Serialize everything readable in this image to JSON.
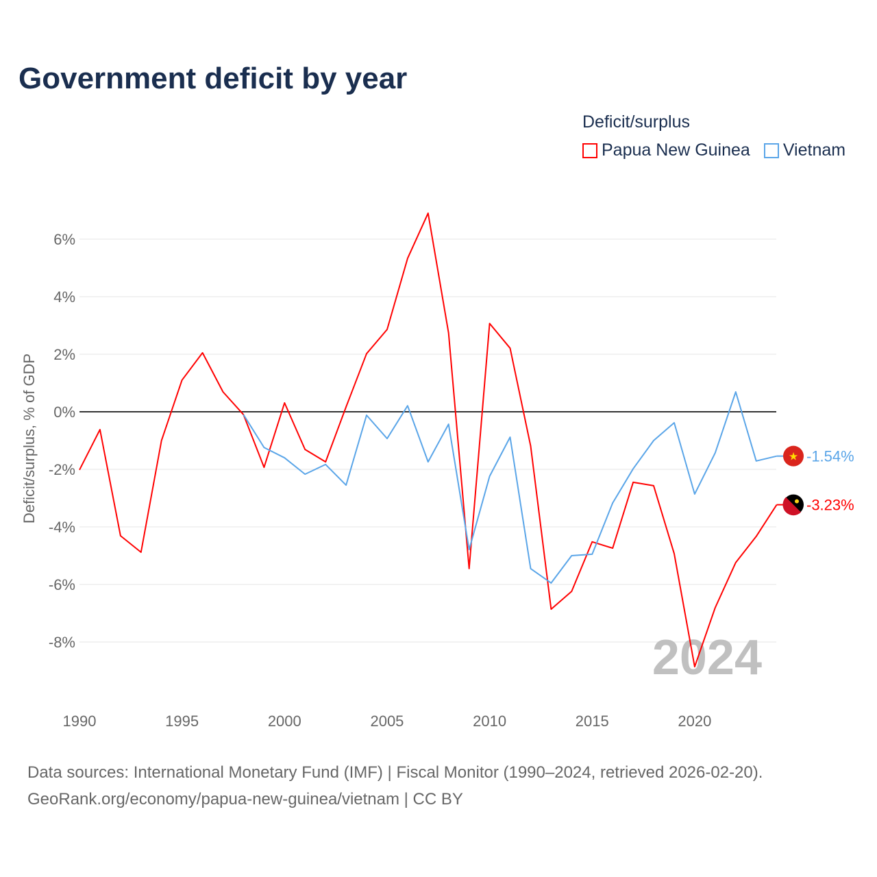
{
  "chart_data": {
    "type": "line",
    "title": "Government deficit by year",
    "ylabel": "Deficit/surplus, % of GDP",
    "xlabel": "",
    "legend_title": "Deficit/surplus",
    "legend_position": "top-right",
    "ylim": [
      -10,
      7.5
    ],
    "xlim": [
      1990,
      2024
    ],
    "y_ticks": [
      6,
      4,
      2,
      0,
      -2,
      -4,
      -6,
      -8
    ],
    "y_tick_labels": [
      "6%",
      "4%",
      "2%",
      "0%",
      "-2%",
      "-4%",
      "-6%",
      "-8%"
    ],
    "x_ticks": [
      1990,
      1995,
      2000,
      2005,
      2010,
      2015,
      2020
    ],
    "x_tick_labels": [
      "1990",
      "1995",
      "2000",
      "2005",
      "2010",
      "2015",
      "2020"
    ],
    "grid": true,
    "watermark_year": "2024",
    "series": [
      {
        "name": "Papua New Guinea",
        "color": "#ff0000",
        "end_label": "-3.23%",
        "x": [
          1990,
          1991,
          1992,
          1993,
          1994,
          1995,
          1996,
          1997,
          1998,
          1999,
          2000,
          2001,
          2002,
          2003,
          2004,
          2005,
          2006,
          2007,
          2008,
          2009,
          2010,
          2011,
          2012,
          2013,
          2014,
          2015,
          2016,
          2017,
          2018,
          2019,
          2020,
          2021,
          2022,
          2023,
          2024
        ],
        "values": [
          -2.02,
          -0.62,
          -4.31,
          -4.88,
          -1.0,
          1.1,
          2.05,
          0.69,
          -0.1,
          -1.93,
          0.31,
          -1.31,
          -1.74,
          0.17,
          2.02,
          2.86,
          5.33,
          6.9,
          2.74,
          -5.45,
          3.07,
          2.21,
          -1.19,
          -6.86,
          -6.24,
          -4.52,
          -4.74,
          -2.45,
          -2.57,
          -4.93,
          -8.86,
          -6.81,
          -5.24,
          -4.33,
          -3.23
        ]
      },
      {
        "name": "Vietnam",
        "color": "#5aa5e8",
        "end_label": "-1.54%",
        "x": [
          1998,
          1999,
          2000,
          2001,
          2002,
          2003,
          2004,
          2005,
          2006,
          2007,
          2008,
          2009,
          2010,
          2011,
          2012,
          2013,
          2014,
          2015,
          2016,
          2017,
          2018,
          2019,
          2020,
          2021,
          2022,
          2023,
          2024
        ],
        "values": [
          -0.1,
          -1.24,
          -1.6,
          -2.17,
          -1.83,
          -2.55,
          -0.12,
          -0.93,
          0.21,
          -1.74,
          -0.43,
          -4.79,
          -2.24,
          -0.88,
          -5.45,
          -5.95,
          -5.0,
          -4.95,
          -3.17,
          -1.98,
          -1.0,
          -0.38,
          -2.86,
          -1.43,
          0.69,
          -1.71,
          -1.54
        ]
      }
    ]
  },
  "footer": {
    "line1": "Data sources: International Monetary Fund (IMF) | Fiscal Monitor (1990–2024, retrieved 2026-02-20).",
    "line2": "GeoRank.org/economy/papua-new-guinea/vietnam | CC BY"
  }
}
